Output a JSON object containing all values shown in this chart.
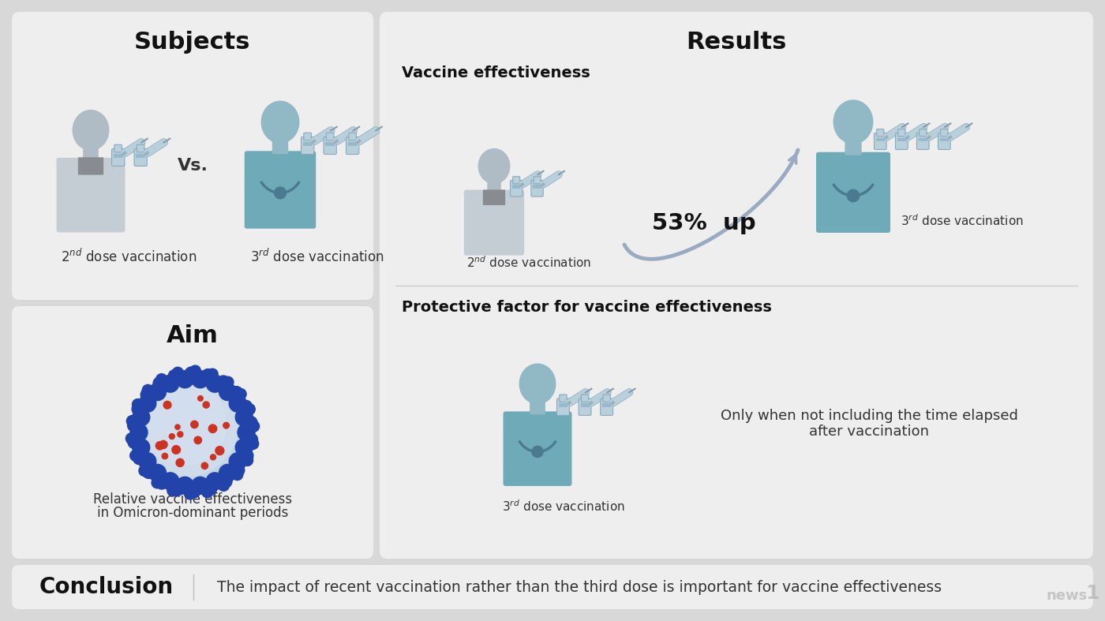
{
  "bg_color": "#d8d8d8",
  "panel_color": "#eeeeee",
  "title_subjects": "Subjects",
  "title_aim": "Aim",
  "title_results": "Results",
  "label_2nd": "2ⁿᵈ dose vaccination",
  "label_3rd": "3ʳᵈ dose vaccination",
  "label_vs": "Vs.",
  "label_53": "53%  up",
  "label_vaccine_eff": "Vaccine effectiveness",
  "label_protective": "Protective factor for vaccine effectiveness",
  "label_aim_text1": "Relative vaccine effectiveness",
  "label_aim_text2": "in Omicron-dominant periods",
  "label_only_when1": "Only when not including the time elapsed",
  "label_only_when2": "after vaccination",
  "conclusion_bold": "Conclusion",
  "conclusion_text": "The impact of recent vaccination rather than the third dose is important for vac",
  "conclusion_text2": "cine effectiveness",
  "arrow_color": "#9aaac0",
  "text_dark": "#111111",
  "text_mid": "#333333",
  "person_grey_head": "#b0bcc5",
  "person_grey_body": "#c5cdd4",
  "person_teal_head": "#90b8c5",
  "person_teal_body": "#6eaab8",
  "vial_color": "#b8d0dc",
  "vial_edge": "#8aaabb",
  "needle_color": "#9ab0bc",
  "steth_color": "#4a7a90",
  "virus_center": "#c5d5e8",
  "virus_spike": "#2244aa",
  "virus_dot": "#cc3322"
}
